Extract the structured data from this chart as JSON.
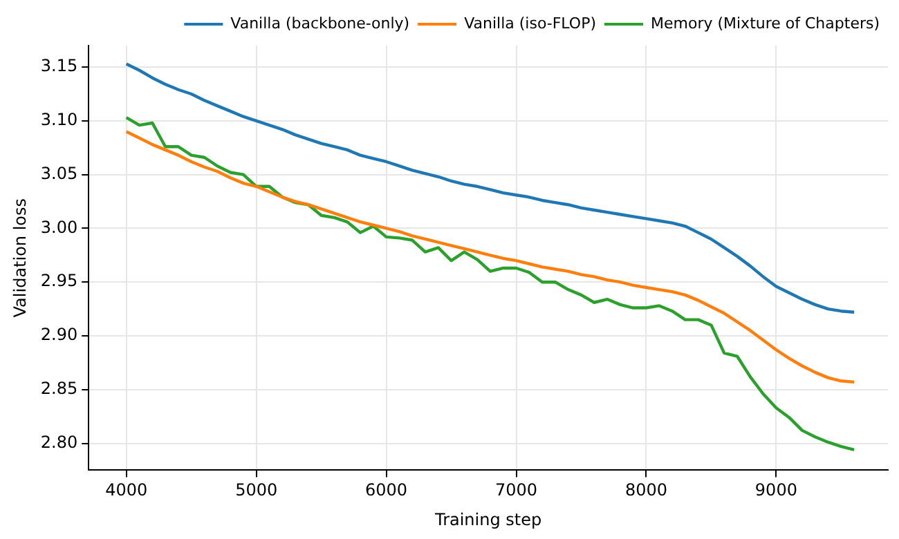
{
  "chart_data": {
    "type": "line",
    "xlabel": "Training step",
    "ylabel": "Validation loss",
    "x": [
      4000,
      4100,
      4200,
      4300,
      4400,
      4500,
      4600,
      4700,
      4800,
      4900,
      5000,
      5100,
      5200,
      5300,
      5400,
      5500,
      5600,
      5700,
      5800,
      5900,
      6000,
      6100,
      6200,
      6300,
      6400,
      6500,
      6600,
      6700,
      6800,
      6900,
      7000,
      7100,
      7200,
      7300,
      7400,
      7500,
      7600,
      7700,
      7800,
      7900,
      8000,
      8100,
      8200,
      8300,
      8400,
      8500,
      8600,
      8700,
      8800,
      8900,
      9000,
      9100,
      9200,
      9300,
      9400,
      9500,
      9600
    ],
    "series": [
      {
        "name": "Vanilla (backbone-only)",
        "color": "#1f77b4",
        "values": [
          3.153,
          3.147,
          3.14,
          3.134,
          3.129,
          3.125,
          3.119,
          3.114,
          3.109,
          3.104,
          3.1,
          3.096,
          3.092,
          3.087,
          3.083,
          3.079,
          3.076,
          3.073,
          3.068,
          3.065,
          3.062,
          3.058,
          3.054,
          3.051,
          3.048,
          3.044,
          3.041,
          3.039,
          3.036,
          3.033,
          3.031,
          3.029,
          3.026,
          3.024,
          3.022,
          3.019,
          3.017,
          3.015,
          3.013,
          3.011,
          3.009,
          3.007,
          3.005,
          3.002,
          2.996,
          2.99,
          2.982,
          2.974,
          2.965,
          2.955,
          2.946,
          2.94,
          2.934,
          2.929,
          2.925,
          2.923,
          2.922
        ]
      },
      {
        "name": "Vanilla (iso-FLOP)",
        "color": "#ff7f0e",
        "values": [
          3.09,
          3.084,
          3.078,
          3.073,
          3.068,
          3.062,
          3.057,
          3.053,
          3.047,
          3.042,
          3.039,
          3.034,
          3.029,
          3.025,
          3.022,
          3.018,
          3.014,
          3.01,
          3.006,
          3.003,
          3.0,
          2.997,
          2.993,
          2.99,
          2.987,
          2.984,
          2.981,
          2.978,
          2.975,
          2.972,
          2.97,
          2.967,
          2.964,
          2.962,
          2.96,
          2.957,
          2.955,
          2.952,
          2.95,
          2.947,
          2.945,
          2.943,
          2.941,
          2.938,
          2.933,
          2.927,
          2.921,
          2.913,
          2.905,
          2.896,
          2.887,
          2.879,
          2.872,
          2.866,
          2.861,
          2.858,
          2.857
        ]
      },
      {
        "name": "Memory (Mixture of Chapters)",
        "color": "#2ca02c",
        "values": [
          3.103,
          3.096,
          3.098,
          3.076,
          3.076,
          3.068,
          3.066,
          3.058,
          3.052,
          3.05,
          3.039,
          3.039,
          3.029,
          3.024,
          3.022,
          3.012,
          3.01,
          3.006,
          2.996,
          3.002,
          2.992,
          2.991,
          2.989,
          2.978,
          2.982,
          2.97,
          2.978,
          2.971,
          2.96,
          2.963,
          2.963,
          2.959,
          2.95,
          2.95,
          2.943,
          2.938,
          2.931,
          2.934,
          2.929,
          2.926,
          2.926,
          2.928,
          2.923,
          2.915,
          2.915,
          2.91,
          2.884,
          2.881,
          2.862,
          2.846,
          2.833,
          2.824,
          2.812,
          2.806,
          2.801,
          2.797,
          2.794
        ]
      }
    ],
    "xlim": [
      3710,
      9860
    ],
    "xticks": [
      4000,
      5000,
      6000,
      7000,
      8000,
      9000
    ],
    "ylim": [
      2.775,
      3.17
    ],
    "yticks": [
      {
        "value": 2.8,
        "label": "2.80"
      },
      {
        "value": 2.85,
        "label": "2.85"
      },
      {
        "value": 2.9,
        "label": "2.90"
      },
      {
        "value": 2.95,
        "label": "2.95"
      },
      {
        "value": 3.0,
        "label": "3.00"
      },
      {
        "value": 3.05,
        "label": "3.05"
      },
      {
        "value": 3.1,
        "label": "3.10"
      },
      {
        "value": 3.15,
        "label": "3.15"
      }
    ],
    "grid": true,
    "legend": "top right",
    "marker": "none",
    "line_style": "solid"
  }
}
